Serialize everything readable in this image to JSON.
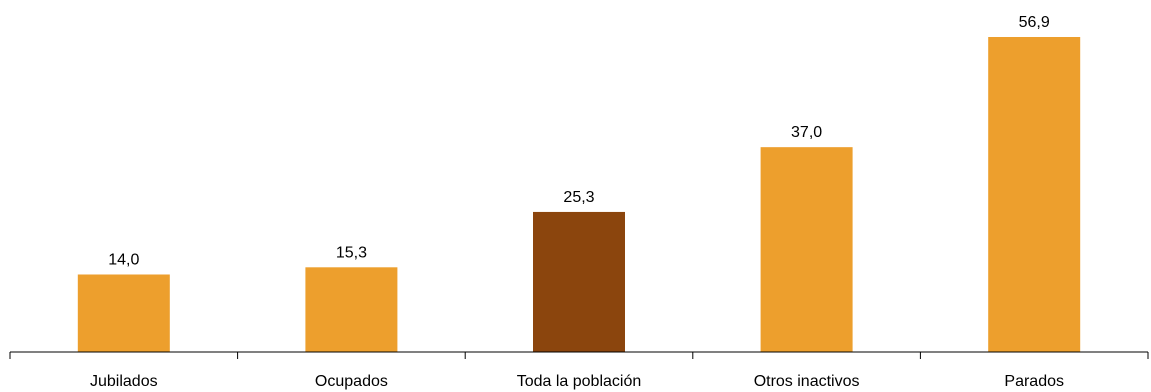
{
  "chart_data": {
    "type": "bar",
    "categories": [
      "Jubilados",
      "Ocupados",
      "Toda la población",
      "Otros inactivos",
      "Parados"
    ],
    "values": [
      14.0,
      15.3,
      25.3,
      37.0,
      56.9
    ],
    "value_labels": [
      "14,0",
      "15,3",
      "25,3",
      "37,0",
      "56,9"
    ],
    "highlight_index": 2,
    "colors": {
      "bar": "#ED9F2D",
      "highlight": "#8B450D",
      "axis": "#000000"
    },
    "title": "",
    "xlabel": "",
    "ylabel": "",
    "ylim": [
      0,
      57
    ],
    "grid": false,
    "legend": "none"
  }
}
